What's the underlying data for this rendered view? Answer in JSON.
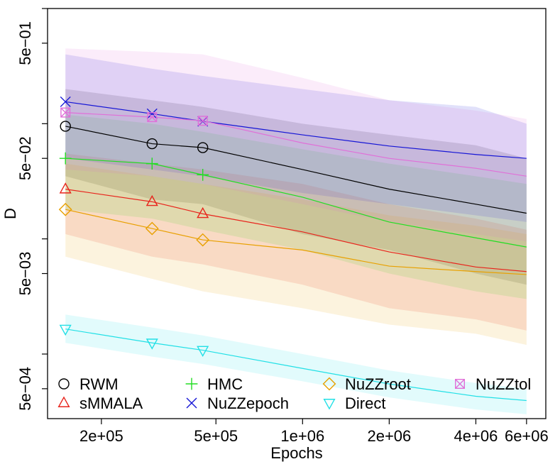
{
  "chart_data": {
    "type": "line",
    "title": "",
    "xlabel": "Epochs",
    "ylabel": "D",
    "xscale": "log",
    "yscale": "log",
    "xlim": [
      130000,
      7000000
    ],
    "ylim": [
      0.000275,
      1.0
    ],
    "xticks": [
      {
        "value": 200000,
        "label": "2e+05"
      },
      {
        "value": 500000,
        "label": "5e+05"
      },
      {
        "value": 1000000,
        "label": "1e+06"
      },
      {
        "value": 2000000,
        "label": "2e+06"
      },
      {
        "value": 4000000,
        "label": "4e+06"
      },
      {
        "value": 6000000,
        "label": "6e+06"
      }
    ],
    "yticks": [
      {
        "value": 1.0,
        "label": ""
      },
      {
        "value": 0.5,
        "label": "5e−01"
      },
      {
        "value": 0.1,
        "label": ""
      },
      {
        "value": 0.05,
        "label": "5e−02"
      },
      {
        "value": 0.01,
        "label": ""
      },
      {
        "value": 0.005,
        "label": "5e−03"
      },
      {
        "value": 0.001,
        "label": ""
      },
      {
        "value": 0.0005,
        "label": "5e−04"
      }
    ],
    "x": [
      150000,
      300000,
      450000,
      1000000,
      2000000,
      4000000,
      6000000
    ],
    "series": [
      {
        "name": "RWM",
        "color": "#000000",
        "marker": "circle",
        "marker_count": 3,
        "values": [
          0.095,
          0.067,
          0.062,
          0.04,
          0.027,
          0.02,
          0.0167
        ],
        "band_low": [
          0.035,
          0.022,
          0.02,
          0.011,
          0.008,
          0.005,
          0.004
        ],
        "band_high": [
          0.2,
          0.16,
          0.14,
          0.1,
          0.08,
          0.065,
          0.05
        ]
      },
      {
        "name": "sMMALA",
        "color": "#e8241c",
        "marker": "triangle-up",
        "marker_count": 3,
        "values": [
          0.027,
          0.021,
          0.0165,
          0.0115,
          0.0077,
          0.0057,
          0.0052
        ],
        "band_low": [
          0.011,
          0.007,
          0.006,
          0.004,
          0.0025,
          0.002,
          0.0016
        ],
        "band_high": [
          0.055,
          0.045,
          0.04,
          0.03,
          0.02,
          0.015,
          0.012
        ]
      },
      {
        "name": "HMC",
        "color": "#22dd22",
        "marker": "plus",
        "marker_count": 3,
        "values": [
          0.05,
          0.045,
          0.036,
          0.023,
          0.014,
          0.0102,
          0.0085
        ],
        "band_low": [
          0.018,
          0.015,
          0.012,
          0.008,
          0.005,
          0.0035,
          0.003
        ],
        "band_high": [
          0.12,
          0.1,
          0.085,
          0.06,
          0.045,
          0.035,
          0.03
        ]
      },
      {
        "name": "NuZZepoch",
        "color": "#1515d6",
        "marker": "x",
        "marker_count": 3,
        "values": [
          0.155,
          0.122,
          0.105,
          0.08,
          0.064,
          0.054,
          0.05
        ],
        "band_low": [
          0.05,
          0.04,
          0.035,
          0.025,
          0.02,
          0.016,
          0.014
        ],
        "band_high": [
          0.4,
          0.3,
          0.26,
          0.2,
          0.16,
          0.14,
          0.1
        ]
      },
      {
        "name": "NuZZroot",
        "color": "#e8a000",
        "marker": "diamond",
        "marker_count": 3,
        "values": [
          0.018,
          0.0123,
          0.0098,
          0.008,
          0.0058,
          0.0052,
          0.0049
        ],
        "band_low": [
          0.007,
          0.0045,
          0.0035,
          0.0025,
          0.0018,
          0.0015,
          0.0012
        ],
        "band_high": [
          0.045,
          0.035,
          0.03,
          0.022,
          0.016,
          0.013,
          0.011
        ]
      },
      {
        "name": "Direct",
        "color": "#22e0e6",
        "marker": "triangle-down",
        "marker_count": 3,
        "values": [
          0.00165,
          0.00125,
          0.00108,
          0.00075,
          0.00055,
          0.00043,
          0.000395
        ],
        "band_low": [
          0.00125,
          0.00095,
          0.00082,
          0.00058,
          0.00042,
          0.00033,
          0.0003
        ],
        "band_high": [
          0.0022,
          0.0017,
          0.00145,
          0.001,
          0.00072,
          0.00056,
          0.0005
        ]
      },
      {
        "name": "NuZZtol",
        "color": "#e070d8",
        "marker": "square-x",
        "marker_count": 3,
        "values": [
          0.125,
          0.114,
          0.106,
          0.068,
          0.05,
          0.041,
          0.035
        ],
        "band_low": [
          0.04,
          0.035,
          0.03,
          0.02,
          0.014,
          0.011,
          0.0095
        ],
        "band_high": [
          0.45,
          0.42,
          0.4,
          0.25,
          0.16,
          0.13,
          0.11
        ]
      }
    ],
    "legend": {
      "position": "bottom",
      "columns": 4
    },
    "grid": false
  }
}
